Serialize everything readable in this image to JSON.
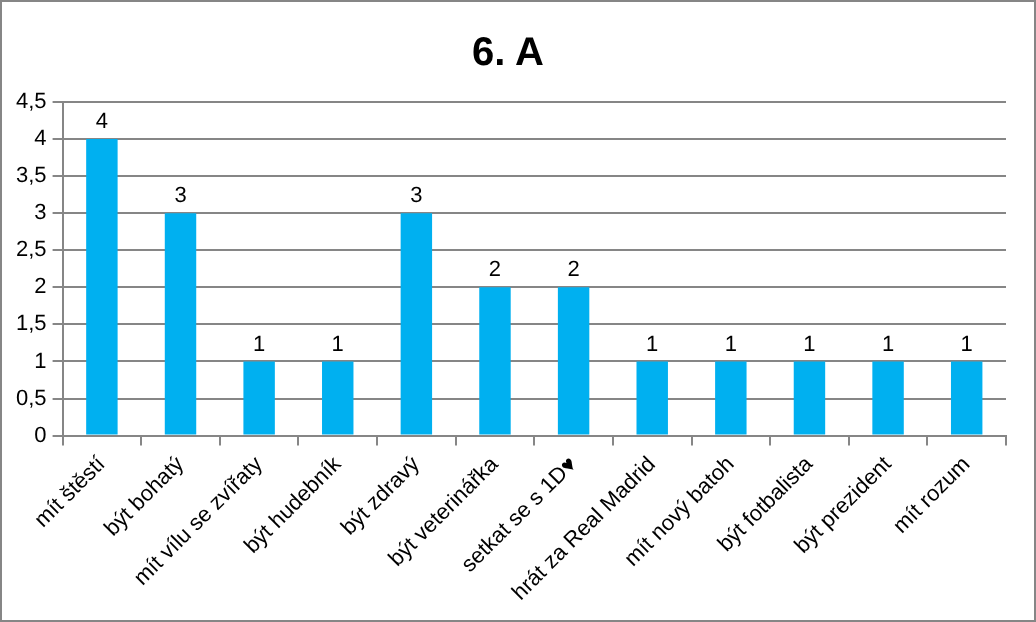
{
  "chart_data": {
    "type": "bar",
    "title": "6. A",
    "categories": [
      "mít štěstí",
      "být bohatý",
      "mít vílu se zvířaty",
      "být hudebník",
      "být zdravý",
      "být veterinářka",
      "setkat se s 1D♥",
      "hrát za Real Madrid",
      "mít nový batoh",
      "být fotbalista",
      "být prezident",
      "mít rozum"
    ],
    "values": [
      4,
      3,
      1,
      1,
      3,
      2,
      2,
      1,
      1,
      1,
      1,
      1
    ],
    "color": "#00b0f0",
    "ylim": [
      0,
      4.5
    ],
    "yticks": [
      0,
      {
        "value": 0.5,
        "label": "0,5"
      },
      1,
      {
        "value": 1.5,
        "label": "1,5"
      },
      2,
      {
        "value": 2.5,
        "label": "2,5"
      },
      3,
      {
        "value": 3.5,
        "label": "3,5"
      },
      4,
      {
        "value": 4.5,
        "label": "4,5"
      }
    ],
    "grid": "y",
    "data_labels": true
  }
}
